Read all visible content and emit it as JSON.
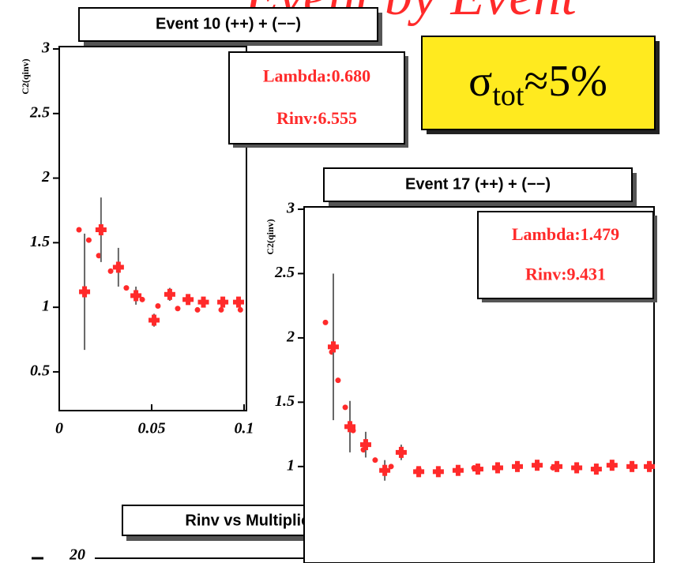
{
  "slide": {
    "title": "Event by Event",
    "sigma": {
      "symbol": "σ",
      "sub": "tot",
      "rest": "≈5%"
    },
    "panel3": {
      "title": "Rinv vs Multiplicity : scatterplot",
      "yticks": [
        20
      ]
    }
  },
  "chart_data": [
    {
      "type": "scatter",
      "title": "Event 10   (++) + (−−)",
      "ylabel": "C2(qinv)",
      "stats": [
        "Lambda:0.680",
        "Rinv:6.555"
      ],
      "xlim": [
        0,
        0.1
      ],
      "ylim": [
        0.2,
        3
      ],
      "xticks": [
        0,
        0.05,
        0.1
      ],
      "yticks": [
        0.5,
        1,
        1.5,
        2,
        2.5,
        3
      ],
      "series": [
        {
          "color": "#ff2a2a",
          "x": [
            0.0107,
            0.016,
            0.0214,
            0.0278,
            0.0363,
            0.0449,
            0.0534,
            0.0641,
            0.0748,
            0.0876,
            0.098
          ],
          "values": [
            1.6,
            1.52,
            1.4,
            1.28,
            1.15,
            1.06,
            1.01,
            0.99,
            0.98,
            0.98,
            0.98
          ]
        },
        {
          "color": "#ff2a2a",
          "x": [
            0.0137,
            0.0226,
            0.032,
            0.0415,
            0.0513,
            0.0598,
            0.0697,
            0.078,
            0.0885,
            0.097
          ],
          "values": [
            1.12,
            1.6,
            1.31,
            1.09,
            0.9,
            1.1,
            1.06,
            1.04,
            1.04,
            1.04
          ],
          "errors": [
            0.45,
            0.25,
            0.15,
            0.07,
            0.05,
            0.05,
            0.04,
            0.04,
            0.03,
            0.03
          ]
        }
      ]
    },
    {
      "type": "scatter",
      "title": "Event 17   (++) + (−−)",
      "ylabel": "C2(qinv)",
      "stats": [
        "Lambda:1.479",
        "Rinv:9.431"
      ],
      "xlim": [
        0,
        0.2
      ],
      "ylim": [
        0.25,
        3
      ],
      "yticks": [
        1,
        1.5,
        2,
        2.5,
        3
      ],
      "series": [
        {
          "color": "#ff2a2a",
          "x": [
            0.0122,
            0.0158,
            0.0194,
            0.0235,
            0.028,
            0.0339,
            0.0406,
            0.0497,
            0.0655,
            0.0971,
            0.1422,
            0.1986
          ],
          "values": [
            2.12,
            1.89,
            1.67,
            1.46,
            1.28,
            1.13,
            1.05,
            1.0,
            0.98,
            0.99,
            0.99,
            1.0
          ]
        },
        {
          "color": "#ff2a2a",
          "x": [
            0.0167,
            0.0262,
            0.0352,
            0.0461,
            0.0555,
            0.0655,
            0.0767,
            0.088,
            0.0993,
            0.1106,
            0.1219,
            0.1332,
            0.1445,
            0.1558,
            0.167,
            0.176,
            0.1874,
            0.1973
          ],
          "values": [
            1.93,
            1.31,
            1.17,
            0.97,
            1.11,
            0.96,
            0.96,
            0.97,
            0.98,
            0.99,
            1.0,
            1.01,
            1.0,
            0.99,
            0.98,
            1.01,
            1.0,
            1.0
          ],
          "errors": [
            0.57,
            0.2,
            0.1,
            0.08,
            0.06,
            0.04,
            0.03,
            0.03,
            0.03,
            0.03,
            0.03,
            0.03,
            0.03,
            0.03,
            0.03,
            0.03,
            0.03,
            0.03
          ]
        }
      ]
    }
  ]
}
